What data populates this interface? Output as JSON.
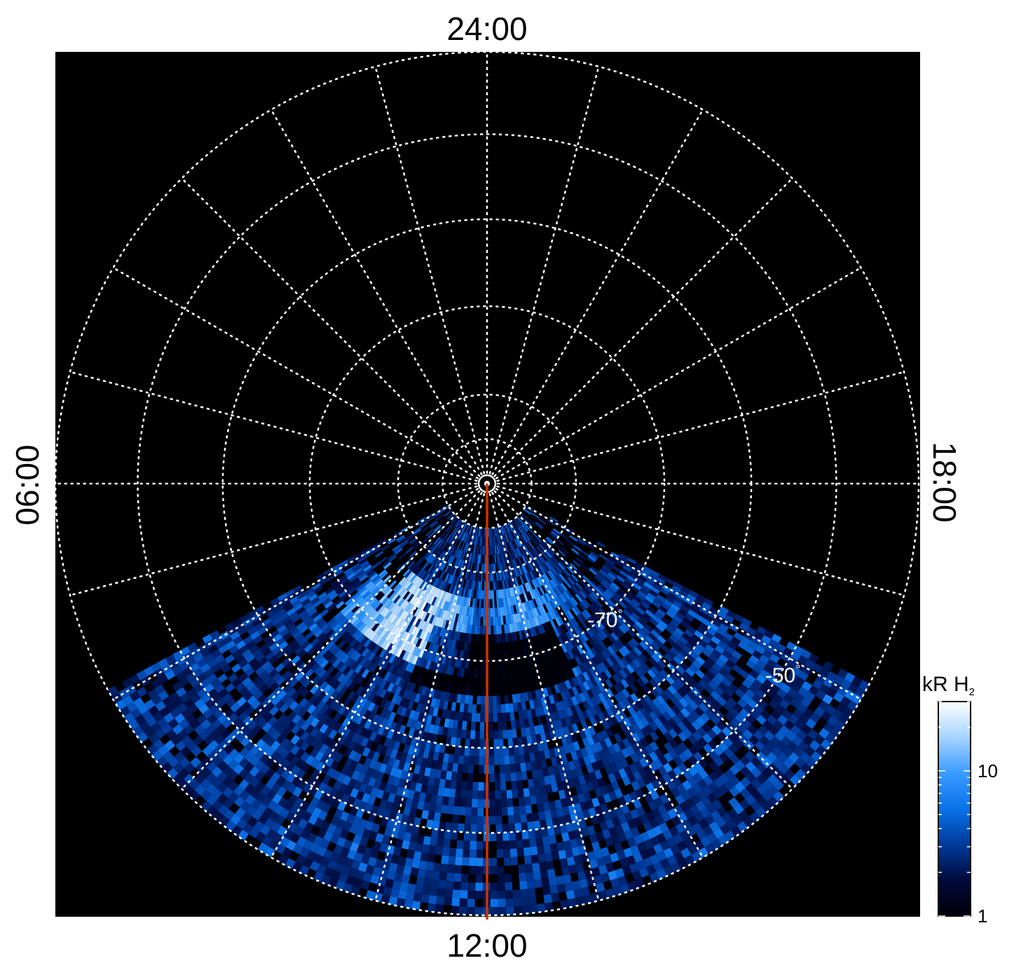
{
  "chart_data": {
    "type": "heatmap",
    "projection": "polar",
    "hemisphere": "south",
    "title": "",
    "local_time_labels": {
      "top": "24:00",
      "left": "06:00",
      "right": "18:00",
      "bottom": "12:00"
    },
    "latitude_rings_deg": [
      -90,
      -85,
      -80,
      -70,
      -60,
      -50,
      -40
    ],
    "latitude_labels": [
      {
        "text": "-70",
        "unit": "°",
        "lat": -70,
        "local_time_hours": 14.7
      },
      {
        "text": "-50",
        "unit": "°",
        "lat": -50,
        "local_time_hours": 15.8
      }
    ],
    "meridian_step_hours": 1,
    "reference_meridian": {
      "local_time_hours": 12,
      "color": "#cc3300"
    },
    "grid": "dotted",
    "data_visible_region": "dayside, from about 08:00 through 12:00 to about 16:00 local time, latitudes -85 to -40",
    "bright_features": [
      {
        "description": "auroral oval brightening",
        "local_time_from_hours": 8.6,
        "local_time_to_hours": 11.6,
        "lat_from": -77,
        "lat_to": -68,
        "peak_kr": 30
      },
      {
        "description": "arc band",
        "local_time_from_hours": 11.6,
        "local_time_to_hours": 14.5,
        "lat_from": -78,
        "lat_to": -72,
        "peak_kr": 15
      }
    ],
    "colorbar": {
      "label": "kR H",
      "label_subscript": "2",
      "scale": "log",
      "range": [
        1,
        30
      ],
      "tick_labels": [
        "1",
        "10"
      ],
      "tick_values": [
        1,
        10
      ],
      "colormap": [
        "#000008",
        "#000a3c",
        "#003a9a",
        "#0a72e8",
        "#3a9cff",
        "#a6d4ff",
        "#ffffff"
      ]
    },
    "background": "#000000"
  }
}
